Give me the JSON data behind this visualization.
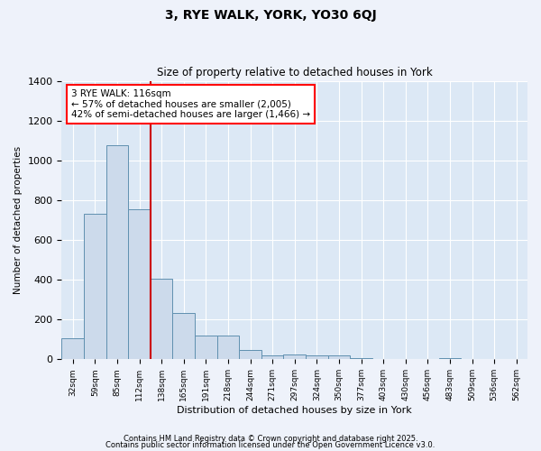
{
  "title": "3, RYE WALK, YORK, YO30 6QJ",
  "subtitle": "Size of property relative to detached houses in York",
  "xlabel": "Distribution of detached houses by size in York",
  "ylabel": "Number of detached properties",
  "categories": [
    "32sqm",
    "59sqm",
    "85sqm",
    "112sqm",
    "138sqm",
    "165sqm",
    "191sqm",
    "218sqm",
    "244sqm",
    "271sqm",
    "297sqm",
    "324sqm",
    "350sqm",
    "377sqm",
    "403sqm",
    "430sqm",
    "456sqm",
    "483sqm",
    "509sqm",
    "536sqm",
    "562sqm"
  ],
  "values": [
    108,
    730,
    1075,
    755,
    403,
    235,
    118,
    118,
    48,
    20,
    25,
    20,
    18,
    5,
    0,
    0,
    0,
    8,
    0,
    0,
    0
  ],
  "bar_color": "#ccdaeb",
  "bar_edge_color": "#6090b0",
  "vline_color": "#cc0000",
  "vline_x_idx": 3.5,
  "annotation_text": "3 RYE WALK: 116sqm\n← 57% of detached houses are smaller (2,005)\n42% of semi-detached houses are larger (1,466) →",
  "background_color": "#dce8f5",
  "grid_color": "#ffffff",
  "ylim": [
    0,
    1400
  ],
  "yticks": [
    0,
    200,
    400,
    600,
    800,
    1000,
    1200,
    1400
  ],
  "fig_bg": "#eef2fa",
  "footer1": "Contains HM Land Registry data © Crown copyright and database right 2025.",
  "footer2": "Contains public sector information licensed under the Open Government Licence v3.0."
}
